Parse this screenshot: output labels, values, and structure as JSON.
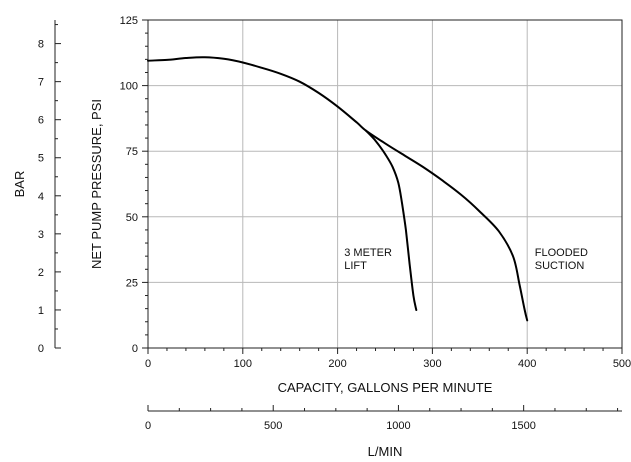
{
  "chart_data": {
    "type": "line",
    "title": "",
    "xlabel": "CAPACITY, GALLONS PER MINUTE",
    "ylabel": "NET PUMP PRESSURE, PSI",
    "xlim": [
      0,
      500
    ],
    "ylim": [
      0,
      125
    ],
    "x_ticks": [
      "0",
      "100",
      "200",
      "300",
      "400",
      "500"
    ],
    "y_ticks": [
      "0",
      "25",
      "50",
      "75",
      "100",
      "125"
    ],
    "grid": true,
    "secondary_x": {
      "label": "L/MIN",
      "range": [
        0,
        1892.7
      ],
      "ticks": [
        "0",
        "500",
        "1000",
        "1500"
      ]
    },
    "secondary_y": {
      "label": "BAR",
      "range": [
        0,
        8.62
      ],
      "ticks": [
        "0",
        "1",
        "2",
        "3",
        "4",
        "5",
        "6",
        "7",
        "8"
      ]
    },
    "series": [
      {
        "name": "FLOODED SUCTION",
        "x": [
          0,
          20,
          40,
          60,
          80,
          100,
          120,
          140,
          160,
          180,
          200,
          220,
          230,
          250,
          270,
          290,
          310,
          330,
          350,
          370,
          385,
          392,
          397,
          400
        ],
        "y": [
          109.5,
          109.8,
          110.5,
          110.8,
          110.2,
          108.8,
          106.8,
          104.5,
          101.5,
          97.2,
          92,
          86,
          82.8,
          78,
          73.5,
          69,
          64,
          58.5,
          52,
          44.5,
          35,
          24,
          15,
          10.5
        ]
      },
      {
        "name": "3 METER LIFT",
        "x": [
          230,
          240,
          250,
          258,
          264,
          268,
          272,
          276,
          280,
          283
        ],
        "y": [
          82.8,
          79,
          74,
          69,
          63,
          55,
          45,
          32,
          20,
          14.5
        ]
      }
    ],
    "annotations": [
      {
        "lines": [
          "3 METER",
          "LIFT"
        ],
        "x": 207,
        "y": 35
      },
      {
        "lines": [
          "FLOODED",
          "SUCTION"
        ],
        "x": 408,
        "y": 35
      }
    ]
  }
}
